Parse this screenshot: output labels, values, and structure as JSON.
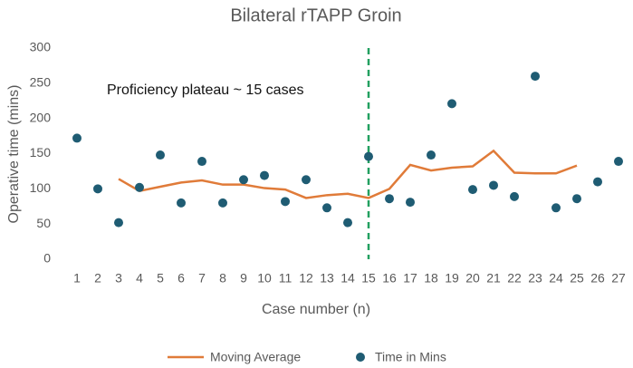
{
  "chart_data": {
    "type": "combo",
    "title": "Bilateral rTAPP Groin",
    "x_label": "Case number (n)",
    "y_label": "Operative time (mins)",
    "categories": [
      "1",
      "2",
      "3",
      "4",
      "5",
      "6",
      "7",
      "8",
      "9",
      "10",
      "11",
      "12",
      "13",
      "14",
      "15",
      "16",
      "17",
      "18",
      "19",
      "20",
      "21",
      "22",
      "23",
      "24",
      "25",
      "26",
      "27"
    ],
    "series": [
      {
        "name": "Moving Average",
        "type": "line",
        "color": "#e07b39",
        "values": [
          null,
          null,
          114,
          97,
          103,
          109,
          112,
          106,
          106,
          101,
          99,
          87,
          91,
          93,
          87,
          100,
          134,
          126,
          130,
          132,
          154,
          123,
          122,
          122,
          133,
          null,
          null
        ]
      },
      {
        "name": "Time in Mins",
        "type": "scatter",
        "color": "#1f5c73",
        "values": [
          172,
          100,
          52,
          102,
          148,
          80,
          139,
          80,
          113,
          119,
          82,
          113,
          73,
          52,
          146,
          86,
          81,
          148,
          221,
          99,
          105,
          89,
          260,
          73,
          86,
          110,
          139
        ]
      }
    ],
    "ylim": [
      0,
      300
    ],
    "yticks": [
      0,
      50,
      100,
      150,
      200,
      250,
      300
    ],
    "grid": false,
    "annotations": [
      {
        "text": "Proficiency plateau ~ 15 cases",
        "category_index": 14,
        "color": "#22a060"
      }
    ],
    "legend": "bottom"
  }
}
